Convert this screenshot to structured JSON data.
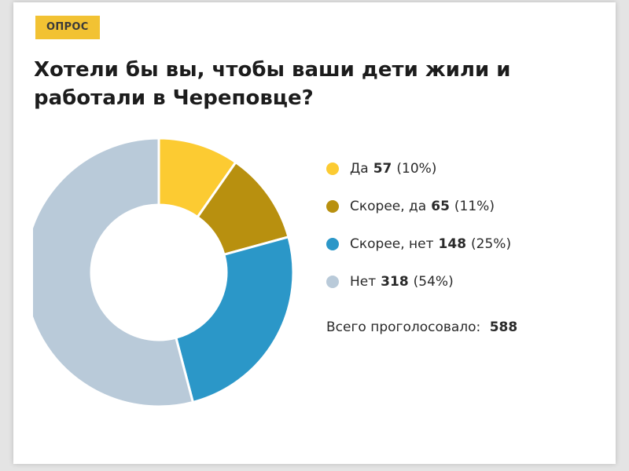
{
  "badge": "ОПРОС",
  "title": "Хотели бы вы, чтобы ваши дети жили и работали в Череповце?",
  "total_label": "Всего проголосовало:",
  "total_value": "588",
  "colors": {
    "badge": "#f2c233",
    "da": "#fccb32",
    "skoree_da": "#b8900f",
    "skoree_net": "#2b97c8",
    "net": "#b9cad9"
  },
  "legend": [
    {
      "label": "Да",
      "value": "57",
      "pct": "(10%)"
    },
    {
      "label": "Скорее, да",
      "value": "65",
      "pct": "(11%)"
    },
    {
      "label": "Скорее, нет",
      "value": "148",
      "pct": "(25%)"
    },
    {
      "label": "Нет",
      "value": "318",
      "pct": "(54%)"
    }
  ],
  "chart_data": {
    "type": "pie",
    "donut": true,
    "categories": [
      "Да",
      "Скорее, да",
      "Скорее, нет",
      "Нет"
    ],
    "values": [
      57,
      65,
      148,
      318
    ],
    "percentages": [
      10,
      11,
      25,
      54
    ],
    "colors": [
      "#fccb32",
      "#b8900f",
      "#2b97c8",
      "#b9cad9"
    ],
    "title": "Хотели бы вы, чтобы ваши дети жили и работали в Череповце?",
    "total": 588,
    "legend_position": "right"
  }
}
